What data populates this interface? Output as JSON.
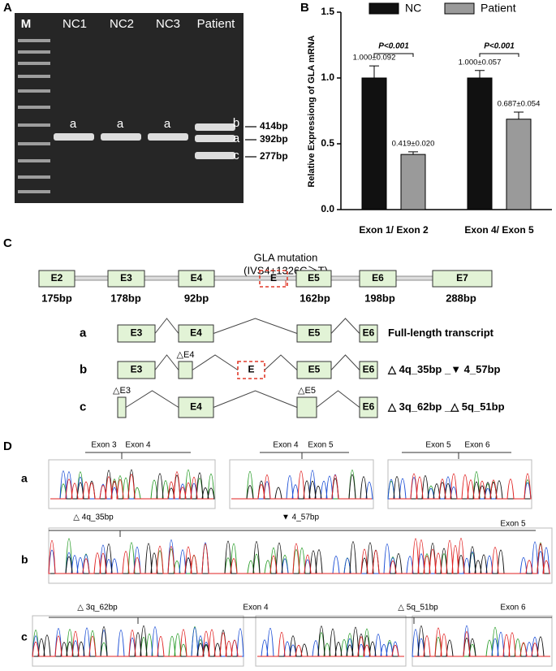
{
  "panel_a": {
    "label": "A",
    "lanes": [
      "M",
      "NC1",
      "NC2",
      "NC3",
      "Patient"
    ],
    "band_labels": [
      "a",
      "a",
      "a",
      "b",
      "a",
      "c"
    ],
    "sizes": [
      "414bp",
      "392bp",
      "277bp"
    ]
  },
  "chart_data": {
    "type": "bar",
    "panel_label": "B",
    "y_label": "Relative Expressiong of GLA mRNA",
    "categories": [
      "Exon 1/ Exon 2",
      "Exon 4/ Exon 5"
    ],
    "series": [
      {
        "name": "NC",
        "color": "#111111",
        "values": [
          1.0,
          1.0
        ],
        "errors": [
          0.092,
          0.057
        ],
        "value_labels": [
          "1.000±0.092",
          "1.000±0.057"
        ]
      },
      {
        "name": "Patient",
        "color": "#9a9a9a",
        "values": [
          0.419,
          0.687
        ],
        "errors": [
          0.02,
          0.054
        ],
        "value_labels": [
          "0.419±0.020",
          "0.687±0.054"
        ]
      }
    ],
    "annotations": [
      "P<0.001",
      "P<0.001"
    ],
    "ylim": [
      0,
      1.5
    ],
    "yticks": [
      {
        "value": 0,
        "label": "0.0"
      },
      {
        "value": 0.5,
        "label": "0.5"
      },
      {
        "value": 1,
        "label": "1.0"
      },
      {
        "value": 1.5,
        "label": "1.5"
      }
    ],
    "legend": "top"
  },
  "panel_c": {
    "label": "C",
    "mutation": "GLA mutation",
    "mutation_detail": "(IVS4+1326C＞T)",
    "exons": [
      "E2",
      "E3",
      "E4",
      "E",
      "E5",
      "E6",
      "E7"
    ],
    "sizes": [
      "175bp",
      "178bp",
      "92bp",
      "162bp",
      "198bp",
      "288bp"
    ],
    "rows": [
      {
        "label": "a",
        "exons": [
          "E3",
          "E4",
          "E5",
          "E6"
        ],
        "note": "Full-length transcript"
      },
      {
        "label": "b",
        "exons": [
          "E3",
          "△E4",
          "E",
          "E5",
          "E6"
        ],
        "note": "△ 4q_35bp _▼ 4_57bp"
      },
      {
        "label": "c",
        "exons": [
          "△E3",
          "E4",
          "△E5",
          "E6"
        ],
        "note": "△ 3q_62bp _△ 5q_51bp"
      }
    ]
  },
  "panel_d": {
    "label": "D",
    "rows": [
      {
        "label": "a",
        "marks": [
          "Exon 3",
          "Exon 4",
          "Exon 4",
          "Exon 5",
          "Exon 5",
          "Exon 6"
        ]
      },
      {
        "label": "b",
        "marks": [
          "△ 4q_35bp",
          "▼ 4_57bp",
          "Exon 5"
        ]
      },
      {
        "label": "c",
        "marks": [
          "△ 3q_62bp",
          "Exon 4",
          "△ 5q_51bp",
          "Exon 6"
        ]
      }
    ]
  }
}
